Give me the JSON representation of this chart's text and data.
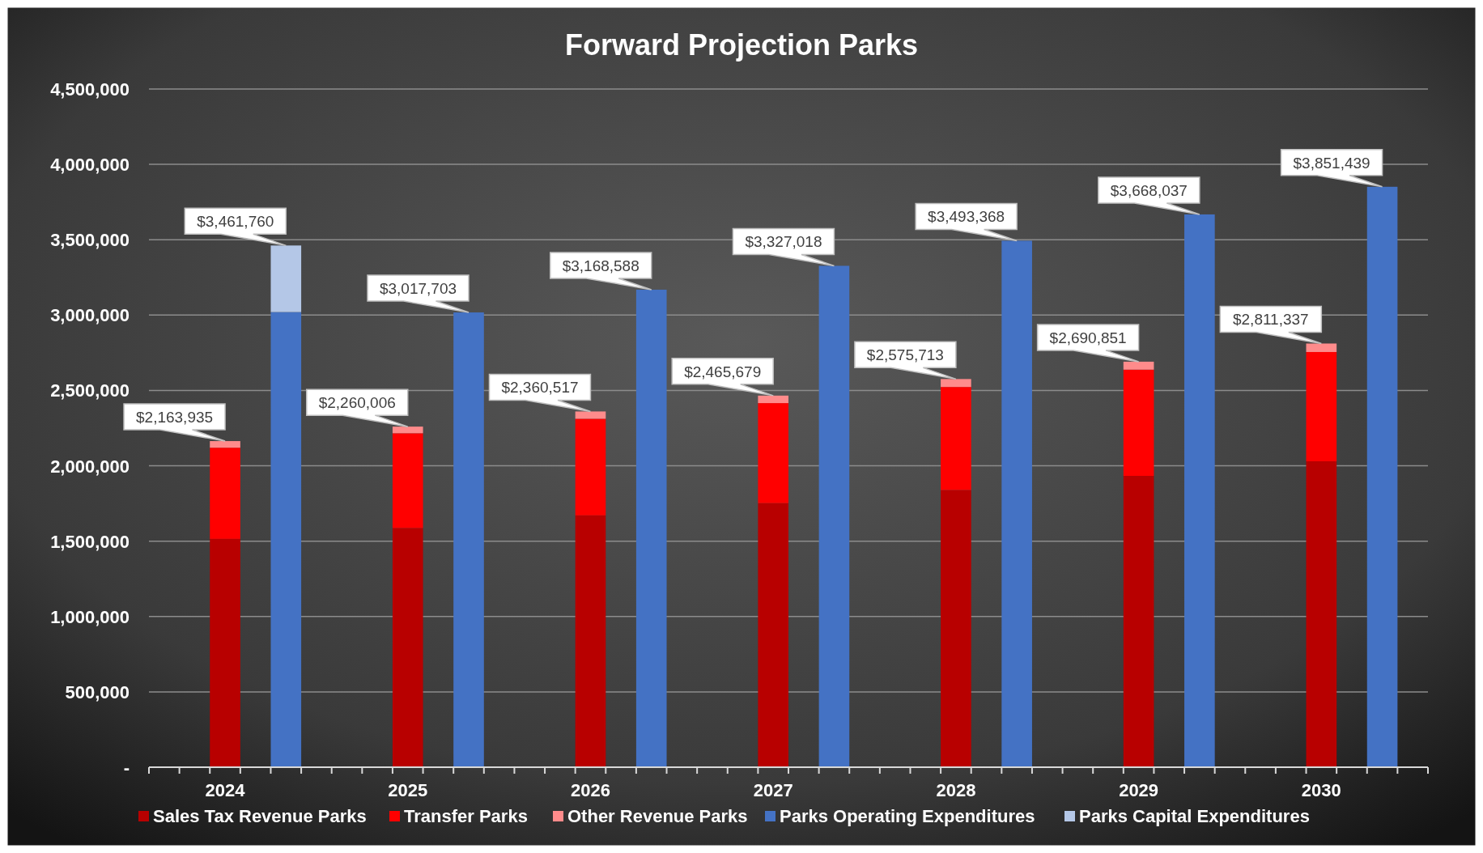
{
  "chart_data": {
    "type": "bar",
    "title": "Forward Projection Parks",
    "stacked": true,
    "categories": [
      "2024",
      null,
      "2025",
      null,
      "2026",
      null,
      "2027",
      null,
      "2028",
      null,
      "2029",
      null,
      "2030",
      null
    ],
    "series": [
      {
        "name": "Sales Tax Revenue Parks",
        "color": "#b80000",
        "values": [
          1515000,
          null,
          1587000,
          null,
          1671000,
          null,
          1752000,
          null,
          1839000,
          null,
          1933000,
          null,
          2030000,
          null
        ]
      },
      {
        "name": "Transfer Parks",
        "color": "#ff0000",
        "values": [
          605000,
          null,
          629000,
          null,
          641000,
          null,
          664000,
          null,
          684000,
          null,
          705000,
          null,
          725000,
          null
        ]
      },
      {
        "name": "Other Revenue Parks",
        "color": "#ff8b8b",
        "values": [
          43935,
          null,
          44006,
          null,
          48517,
          null,
          49679,
          null,
          52713,
          null,
          52851,
          null,
          56337,
          null
        ]
      },
      {
        "name": "Parks Operating Expenditures",
        "color": "#4472c4",
        "values": [
          null,
          3020000,
          null,
          3017703,
          null,
          3168588,
          null,
          3327018,
          null,
          3493368,
          null,
          3668037,
          null,
          3851439
        ]
      },
      {
        "name": "Parks Capital Expenditures",
        "color": "#b4c7e7",
        "values": [
          null,
          441760,
          null,
          null,
          null,
          null,
          null,
          null,
          null,
          null,
          null,
          null,
          null,
          null
        ]
      }
    ],
    "totals": [
      "$2,163,935",
      "$3,461,760",
      "$2,260,006",
      "$3,017,703",
      "$2,360,517",
      "$3,168,588",
      "$2,465,679",
      "$3,327,018",
      "$2,575,713",
      "$3,493,368",
      "$2,690,851",
      "$3,668,037",
      "$2,811,337",
      "$3,851,439"
    ],
    "ylim": [
      0,
      4500000
    ],
    "yticks": [
      {
        "value": 0,
        "label": "-"
      },
      {
        "value": 500000,
        "label": "500,000"
      },
      {
        "value": 1000000,
        "label": "1,000,000"
      },
      {
        "value": 1500000,
        "label": "1,500,000"
      },
      {
        "value": 2000000,
        "label": "2,000,000"
      },
      {
        "value": 2500000,
        "label": "2,500,000"
      },
      {
        "value": 3000000,
        "label": "3,000,000"
      },
      {
        "value": 3500000,
        "label": "3,500,000"
      },
      {
        "value": 4000000,
        "label": "4,000,000"
      },
      {
        "value": 4500000,
        "label": "4,500,000"
      }
    ],
    "grid": "y",
    "legend": "bottom"
  }
}
